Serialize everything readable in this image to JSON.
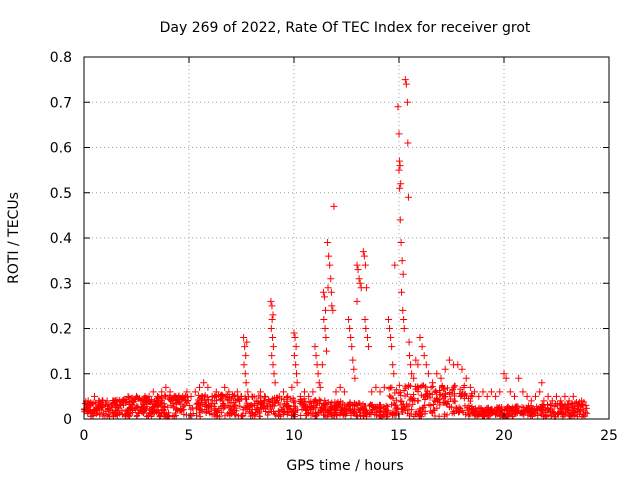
{
  "chart_data": {
    "type": "scatter",
    "title": "Day 269 of 2022, Rate Of TEC Index for receiver grot",
    "xlabel": "GPS time / hours",
    "ylabel": "ROTI / TECUs",
    "xlim": [
      0,
      25
    ],
    "ylim": [
      0,
      0.8
    ],
    "x_ticks": [
      "0",
      "5",
      "10",
      "15",
      "20",
      "25"
    ],
    "y_ticks": [
      "0",
      "0.1",
      "0.2",
      "0.3",
      "0.4",
      "0.5",
      "0.6",
      "0.7",
      "0.8"
    ],
    "grid": true,
    "marker": "+",
    "series_color": "#ff0000",
    "series": [
      {
        "points": [
          [
            0.1,
            0.02
          ],
          [
            0.2,
            0.04
          ],
          [
            0.3,
            0.03
          ],
          [
            0.5,
            0.05
          ],
          [
            0.7,
            0.04
          ],
          [
            0.9,
            0.03
          ],
          [
            1.1,
            0.04
          ],
          [
            1.3,
            0.03
          ],
          [
            1.5,
            0.04
          ],
          [
            1.7,
            0.03
          ],
          [
            1.9,
            0.04
          ],
          [
            2.1,
            0.05
          ],
          [
            2.3,
            0.04
          ],
          [
            2.5,
            0.05
          ],
          [
            2.7,
            0.04
          ],
          [
            2.9,
            0.05
          ],
          [
            3.1,
            0.05
          ],
          [
            3.3,
            0.06
          ],
          [
            3.5,
            0.05
          ],
          [
            3.7,
            0.06
          ],
          [
            3.9,
            0.07
          ],
          [
            4.1,
            0.06
          ],
          [
            4.3,
            0.05
          ],
          [
            4.5,
            0.04
          ],
          [
            4.7,
            0.05
          ],
          [
            4.9,
            0.06
          ],
          [
            5.1,
            0.05
          ],
          [
            5.3,
            0.06
          ],
          [
            5.5,
            0.07
          ],
          [
            5.7,
            0.08
          ],
          [
            5.9,
            0.07
          ],
          [
            6.1,
            0.05
          ],
          [
            6.3,
            0.06
          ],
          [
            6.5,
            0.05
          ],
          [
            6.7,
            0.07
          ],
          [
            6.9,
            0.06
          ],
          [
            7.1,
            0.05
          ],
          [
            7.3,
            0.06
          ],
          [
            7.5,
            0.05
          ],
          [
            7.6,
            0.18
          ],
          [
            7.65,
            0.16
          ],
          [
            7.7,
            0.14
          ],
          [
            7.62,
            0.12
          ],
          [
            7.68,
            0.1
          ],
          [
            7.72,
            0.08
          ],
          [
            7.75,
            0.17
          ],
          [
            7.8,
            0.06
          ],
          [
            8.0,
            0.05
          ],
          [
            8.2,
            0.04
          ],
          [
            8.4,
            0.06
          ],
          [
            8.6,
            0.05
          ],
          [
            8.8,
            0.04
          ],
          [
            8.9,
            0.26
          ],
          [
            8.95,
            0.25
          ],
          [
            9.0,
            0.23
          ],
          [
            8.92,
            0.2
          ],
          [
            8.98,
            0.18
          ],
          [
            9.02,
            0.16
          ],
          [
            8.94,
            0.14
          ],
          [
            9.0,
            0.12
          ],
          [
            9.05,
            0.1
          ],
          [
            9.1,
            0.08
          ],
          [
            8.96,
            0.22
          ],
          [
            9.3,
            0.05
          ],
          [
            9.5,
            0.06
          ],
          [
            9.7,
            0.05
          ],
          [
            9.9,
            0.07
          ],
          [
            10.0,
            0.19
          ],
          [
            10.05,
            0.18
          ],
          [
            10.1,
            0.16
          ],
          [
            10.02,
            0.14
          ],
          [
            10.08,
            0.12
          ],
          [
            10.12,
            0.1
          ],
          [
            10.15,
            0.08
          ],
          [
            10.3,
            0.05
          ],
          [
            10.5,
            0.06
          ],
          [
            10.7,
            0.05
          ],
          [
            10.9,
            0.06
          ],
          [
            11.0,
            0.16
          ],
          [
            11.05,
            0.14
          ],
          [
            11.1,
            0.12
          ],
          [
            11.15,
            0.1
          ],
          [
            11.2,
            0.08
          ],
          [
            11.25,
            0.07
          ],
          [
            11.4,
            0.28
          ],
          [
            11.45,
            0.27
          ],
          [
            11.5,
            0.24
          ],
          [
            11.42,
            0.22
          ],
          [
            11.48,
            0.2
          ],
          [
            11.52,
            0.18
          ],
          [
            11.55,
            0.15
          ],
          [
            11.35,
            0.12
          ],
          [
            11.6,
            0.39
          ],
          [
            11.65,
            0.36
          ],
          [
            11.7,
            0.34
          ],
          [
            11.75,
            0.31
          ],
          [
            11.62,
            0.29
          ],
          [
            11.78,
            0.28
          ],
          [
            11.8,
            0.25
          ],
          [
            11.85,
            0.24
          ],
          [
            11.9,
            0.47
          ],
          [
            12.0,
            0.06
          ],
          [
            12.2,
            0.07
          ],
          [
            12.4,
            0.06
          ],
          [
            12.6,
            0.22
          ],
          [
            12.65,
            0.2
          ],
          [
            12.7,
            0.18
          ],
          [
            12.75,
            0.16
          ],
          [
            12.8,
            0.13
          ],
          [
            12.85,
            0.11
          ],
          [
            12.9,
            0.09
          ],
          [
            13.0,
            0.34
          ],
          [
            13.05,
            0.33
          ],
          [
            13.1,
            0.31
          ],
          [
            13.0,
            0.26
          ],
          [
            13.15,
            0.3
          ],
          [
            13.2,
            0.29
          ],
          [
            13.3,
            0.37
          ],
          [
            13.35,
            0.36
          ],
          [
            13.4,
            0.34
          ],
          [
            13.45,
            0.29
          ],
          [
            13.38,
            0.22
          ],
          [
            13.42,
            0.2
          ],
          [
            13.5,
            0.18
          ],
          [
            13.55,
            0.16
          ],
          [
            13.7,
            0.06
          ],
          [
            13.9,
            0.07
          ],
          [
            14.1,
            0.06
          ],
          [
            14.3,
            0.07
          ],
          [
            14.5,
            0.22
          ],
          [
            14.55,
            0.2
          ],
          [
            14.6,
            0.18
          ],
          [
            14.65,
            0.16
          ],
          [
            14.7,
            0.12
          ],
          [
            14.75,
            0.1
          ],
          [
            14.8,
            0.34
          ],
          [
            14.95,
            0.69
          ],
          [
            15.0,
            0.63
          ],
          [
            15.02,
            0.57
          ],
          [
            15.05,
            0.56
          ],
          [
            15.0,
            0.55
          ],
          [
            15.08,
            0.52
          ],
          [
            15.03,
            0.51
          ],
          [
            15.06,
            0.44
          ],
          [
            15.1,
            0.39
          ],
          [
            15.15,
            0.35
          ],
          [
            15.2,
            0.32
          ],
          [
            15.12,
            0.28
          ],
          [
            15.18,
            0.24
          ],
          [
            15.22,
            0.22
          ],
          [
            15.25,
            0.2
          ],
          [
            15.3,
            0.75
          ],
          [
            15.35,
            0.74
          ],
          [
            15.4,
            0.7
          ],
          [
            15.42,
            0.61
          ],
          [
            15.45,
            0.49
          ],
          [
            15.48,
            0.17
          ],
          [
            15.5,
            0.14
          ],
          [
            15.55,
            0.12
          ],
          [
            15.6,
            0.1
          ],
          [
            15.7,
            0.09
          ],
          [
            15.8,
            0.13
          ],
          [
            15.9,
            0.12
          ],
          [
            16.0,
            0.18
          ],
          [
            16.1,
            0.16
          ],
          [
            16.2,
            0.14
          ],
          [
            16.3,
            0.12
          ],
          [
            16.4,
            0.1
          ],
          [
            16.6,
            0.08
          ],
          [
            16.8,
            0.1
          ],
          [
            17.0,
            0.09
          ],
          [
            17.2,
            0.11
          ],
          [
            17.4,
            0.13
          ],
          [
            17.6,
            0.12
          ],
          [
            17.8,
            0.12
          ],
          [
            18.0,
            0.11
          ],
          [
            18.2,
            0.09
          ],
          [
            18.4,
            0.07
          ],
          [
            18.6,
            0.06
          ],
          [
            18.8,
            0.05
          ],
          [
            19.0,
            0.06
          ],
          [
            19.2,
            0.05
          ],
          [
            19.4,
            0.06
          ],
          [
            19.6,
            0.05
          ],
          [
            19.8,
            0.06
          ],
          [
            20.0,
            0.1
          ],
          [
            20.1,
            0.09
          ],
          [
            20.3,
            0.06
          ],
          [
            20.5,
            0.05
          ],
          [
            20.7,
            0.09
          ],
          [
            20.9,
            0.06
          ],
          [
            21.1,
            0.05
          ],
          [
            21.3,
            0.04
          ],
          [
            21.5,
            0.05
          ],
          [
            21.7,
            0.06
          ],
          [
            21.8,
            0.08
          ],
          [
            21.9,
            0.04
          ],
          [
            22.1,
            0.05
          ],
          [
            22.3,
            0.04
          ],
          [
            22.5,
            0.05
          ],
          [
            22.7,
            0.04
          ],
          [
            22.9,
            0.05
          ],
          [
            23.1,
            0.04
          ],
          [
            23.3,
            0.05
          ],
          [
            23.5,
            0.03
          ],
          [
            23.7,
            0.04
          ],
          [
            23.9,
            0.03
          ]
        ]
      }
    ]
  }
}
